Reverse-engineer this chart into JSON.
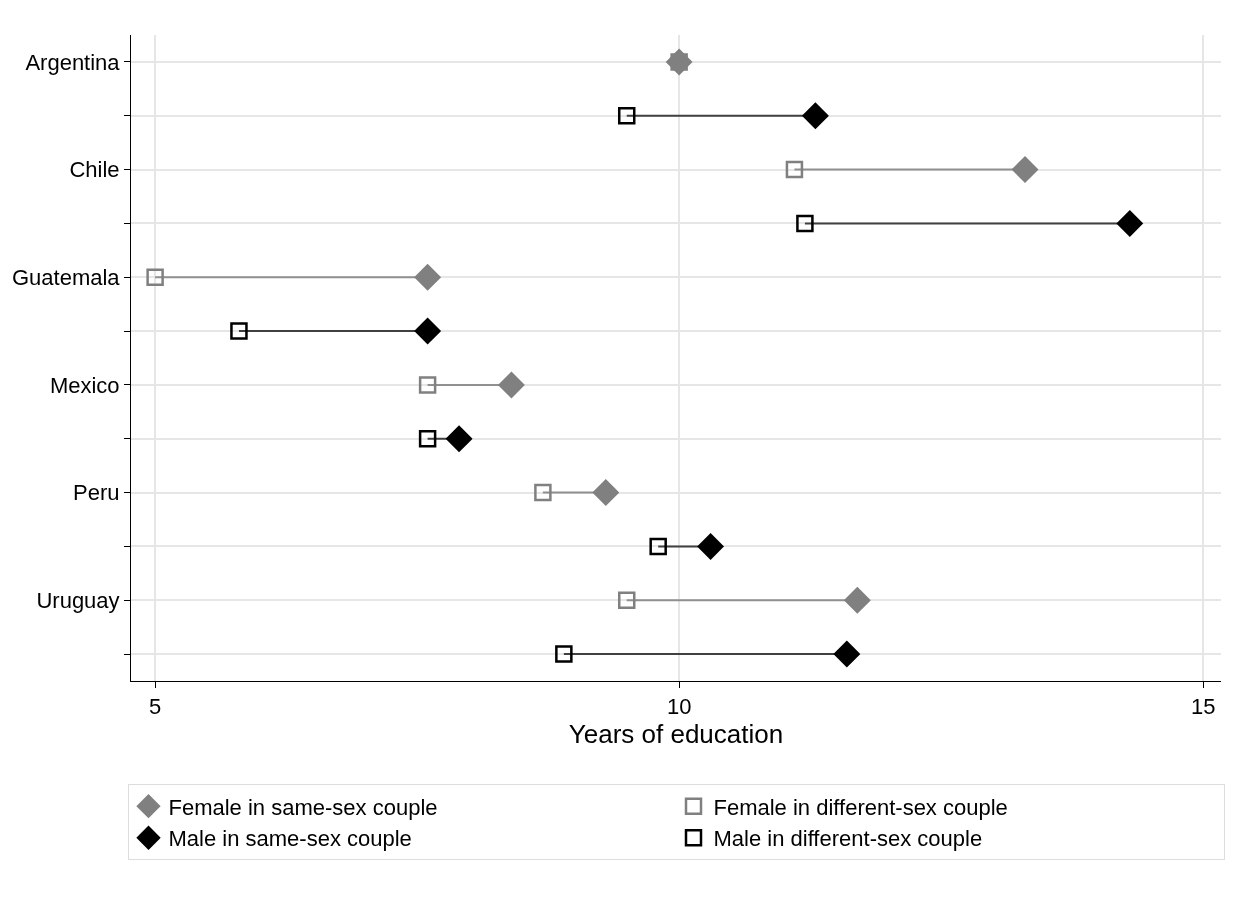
{
  "chart_data": {
    "type": "scatter",
    "orientation": "horizontal",
    "xlabel": "Years of education",
    "categories": [
      "Argentina",
      null,
      "Chile",
      null,
      "Guatemala",
      null,
      "Mexico",
      null,
      "Peru",
      null,
      "Uruguay",
      null
    ],
    "series": [
      {
        "name": "Female in same-sex couple",
        "color": "#808080",
        "marker": "diamond",
        "values": [
          10.0,
          null,
          13.3,
          null,
          7.6,
          null,
          8.4,
          null,
          9.3,
          null,
          11.7,
          null
        ]
      },
      {
        "name": "Female in different-sex couple",
        "color": "#808080",
        "marker": "square-open",
        "values": [
          10.0,
          null,
          11.1,
          null,
          5.0,
          null,
          7.6,
          null,
          8.7,
          null,
          9.5,
          null
        ]
      },
      {
        "name": "Male in same-sex couple",
        "color": "#000000",
        "marker": "diamond",
        "values": [
          null,
          11.3,
          null,
          14.3,
          null,
          7.6,
          null,
          7.9,
          null,
          10.3,
          null,
          11.6
        ]
      },
      {
        "name": "Male in different-sex couple",
        "color": "#000000",
        "marker": "square-open",
        "values": [
          null,
          9.5,
          null,
          11.2,
          null,
          5.8,
          null,
          7.6,
          null,
          9.8,
          null,
          8.9
        ]
      }
    ],
    "xlim": [
      4.77,
      15.17
    ],
    "xticks": [
      5,
      10,
      15
    ],
    "grid": true,
    "legend": "bottom"
  }
}
